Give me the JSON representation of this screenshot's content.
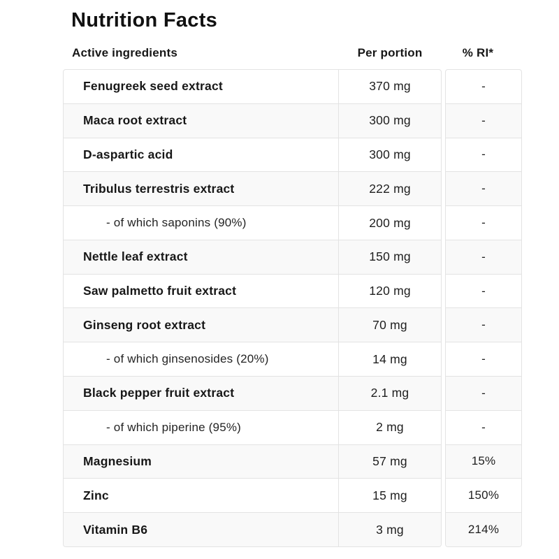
{
  "title": "Nutrition Facts",
  "colors": {
    "border": "#e3e3e3",
    "stripe": "#f9f9f9",
    "text": "#171717",
    "background": "#ffffff"
  },
  "table": {
    "headers": {
      "ingredients": "Active ingredients",
      "per_portion": "Per portion",
      "ri": "% RI*"
    },
    "rows": [
      {
        "name": "Fenugreek seed extract",
        "sub": false,
        "amount": "370 mg",
        "ri": "-"
      },
      {
        "name": "Maca root extract",
        "sub": false,
        "amount": "300 mg",
        "ri": "-"
      },
      {
        "name": "D-aspartic acid",
        "sub": false,
        "amount": "300 mg",
        "ri": "-"
      },
      {
        "name": "Tribulus terrestris extract",
        "sub": false,
        "amount": "222 mg",
        "ri": "-"
      },
      {
        "name": "- of which saponins (90%)",
        "sub": true,
        "amount": "200 mg",
        "ri": "-"
      },
      {
        "name": "Nettle leaf extract",
        "sub": false,
        "amount": "150 mg",
        "ri": "-"
      },
      {
        "name": "Saw palmetto fruit extract",
        "sub": false,
        "amount": "120 mg",
        "ri": "-"
      },
      {
        "name": "Ginseng root extract",
        "sub": false,
        "amount": "70 mg",
        "ri": "-"
      },
      {
        "name": "- of which ginsenosides (20%)",
        "sub": true,
        "amount": "14 mg",
        "ri": "-"
      },
      {
        "name": "Black pepper fruit extract",
        "sub": false,
        "amount": "2.1 mg",
        "ri": "-"
      },
      {
        "name": "- of which piperine (95%)",
        "sub": true,
        "amount": "2 mg",
        "ri": "-"
      },
      {
        "name": "Magnesium",
        "sub": false,
        "amount": "57 mg",
        "ri": "15%"
      },
      {
        "name": "Zinc",
        "sub": false,
        "amount": "15 mg",
        "ri": "150%"
      },
      {
        "name": "Vitamin B6",
        "sub": false,
        "amount": "3 mg",
        "ri": "214%"
      }
    ]
  }
}
